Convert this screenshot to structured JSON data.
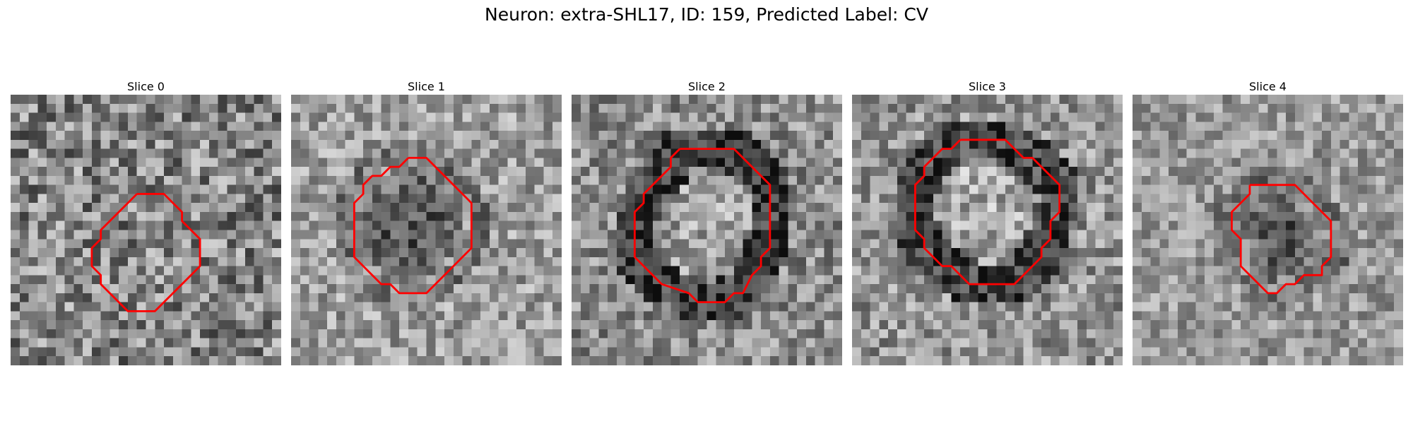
{
  "figure": {
    "title": "Neuron: extra-SHL17, ID: 159, Predicted Label: CV"
  },
  "colors": {
    "contour": "#ff0000",
    "background": "#ffffff"
  },
  "grid_size": 30,
  "panels": [
    {
      "title": "Slice 0",
      "seed": 11,
      "base_level": 0.52,
      "noise": 0.3,
      "contour": [
        [
          14,
          11
        ],
        [
          17,
          11
        ],
        [
          18,
          12
        ],
        [
          19,
          13
        ],
        [
          19,
          14
        ],
        [
          20,
          15
        ],
        [
          21,
          16
        ],
        [
          21,
          18
        ],
        [
          21,
          19
        ],
        [
          20,
          20
        ],
        [
          19,
          21
        ],
        [
          18,
          22
        ],
        [
          17,
          23
        ],
        [
          16,
          24
        ],
        [
          14,
          24
        ],
        [
          13,
          24
        ],
        [
          12,
          23
        ],
        [
          11,
          22
        ],
        [
          10,
          21
        ],
        [
          10,
          20
        ],
        [
          9,
          19
        ],
        [
          9,
          18
        ],
        [
          9,
          17
        ],
        [
          10,
          16
        ],
        [
          10,
          15
        ],
        [
          11,
          14
        ],
        [
          12,
          13
        ],
        [
          13,
          12
        ],
        [
          14,
          11
        ]
      ]
    },
    {
      "title": "Slice 1",
      "seed": 23,
      "base_level": 0.62,
      "noise": 0.22,
      "contour": [
        [
          13,
          7
        ],
        [
          15,
          7
        ],
        [
          16,
          8
        ],
        [
          17,
          9
        ],
        [
          18,
          10
        ],
        [
          19,
          11
        ],
        [
          20,
          12
        ],
        [
          20,
          14
        ],
        [
          20,
          17
        ],
        [
          19,
          18
        ],
        [
          18,
          19
        ],
        [
          17,
          20
        ],
        [
          16,
          21
        ],
        [
          15,
          22
        ],
        [
          12,
          22
        ],
        [
          11,
          21
        ],
        [
          10,
          21
        ],
        [
          9,
          20
        ],
        [
          8,
          19
        ],
        [
          7,
          18
        ],
        [
          7,
          16
        ],
        [
          7,
          14
        ],
        [
          7,
          12
        ],
        [
          8,
          11
        ],
        [
          8,
          10
        ],
        [
          9,
          9
        ],
        [
          10,
          9
        ],
        [
          11,
          8
        ],
        [
          12,
          8
        ],
        [
          13,
          7
        ]
      ]
    },
    {
      "title": "Slice 2",
      "seed": 37,
      "base_level": 0.55,
      "noise": 0.24,
      "contour": [
        [
          12,
          6
        ],
        [
          18,
          6
        ],
        [
          19,
          7
        ],
        [
          20,
          8
        ],
        [
          21,
          9
        ],
        [
          22,
          10
        ],
        [
          22,
          13
        ],
        [
          22,
          16
        ],
        [
          22,
          17
        ],
        [
          21,
          18
        ],
        [
          21,
          19
        ],
        [
          20,
          20
        ],
        [
          19,
          22
        ],
        [
          18,
          22
        ],
        [
          17,
          23
        ],
        [
          14,
          23
        ],
        [
          13,
          22
        ],
        [
          10,
          21
        ],
        [
          9,
          20
        ],
        [
          8,
          19
        ],
        [
          7,
          18
        ],
        [
          7,
          16
        ],
        [
          7,
          13
        ],
        [
          8,
          12
        ],
        [
          8,
          11
        ],
        [
          9,
          10
        ],
        [
          10,
          9
        ],
        [
          11,
          8
        ],
        [
          11,
          7
        ],
        [
          12,
          6
        ]
      ]
    },
    {
      "title": "Slice 3",
      "seed": 53,
      "base_level": 0.58,
      "noise": 0.24,
      "contour": [
        [
          12,
          5
        ],
        [
          17,
          5
        ],
        [
          18,
          6
        ],
        [
          19,
          7
        ],
        [
          20,
          7
        ],
        [
          21,
          8
        ],
        [
          22,
          9
        ],
        [
          23,
          10
        ],
        [
          23,
          13
        ],
        [
          22,
          14
        ],
        [
          22,
          16
        ],
        [
          21,
          17
        ],
        [
          21,
          18
        ],
        [
          20,
          19
        ],
        [
          19,
          20
        ],
        [
          18,
          21
        ],
        [
          13,
          21
        ],
        [
          12,
          20
        ],
        [
          11,
          19
        ],
        [
          10,
          19
        ],
        [
          9,
          18
        ],
        [
          8,
          17
        ],
        [
          8,
          16
        ],
        [
          7,
          15
        ],
        [
          7,
          10
        ],
        [
          8,
          9
        ],
        [
          8,
          8
        ],
        [
          9,
          7
        ],
        [
          10,
          6
        ],
        [
          11,
          6
        ],
        [
          12,
          5
        ]
      ]
    },
    {
      "title": "Slice 4",
      "seed": 71,
      "base_level": 0.6,
      "noise": 0.2,
      "contour": [
        [
          13,
          10
        ],
        [
          18,
          10
        ],
        [
          19,
          11
        ],
        [
          20,
          12
        ],
        [
          21,
          13
        ],
        [
          22,
          14
        ],
        [
          22,
          18
        ],
        [
          21,
          19
        ],
        [
          21,
          20
        ],
        [
          20,
          20
        ],
        [
          19,
          20
        ],
        [
          18,
          21
        ],
        [
          17,
          21
        ],
        [
          16,
          22
        ],
        [
          15,
          22
        ],
        [
          14,
          21
        ],
        [
          13,
          20
        ],
        [
          12,
          19
        ],
        [
          12,
          18
        ],
        [
          12,
          16
        ],
        [
          11,
          15
        ],
        [
          11,
          13
        ],
        [
          12,
          12
        ],
        [
          13,
          11
        ],
        [
          13,
          10
        ]
      ]
    }
  ]
}
